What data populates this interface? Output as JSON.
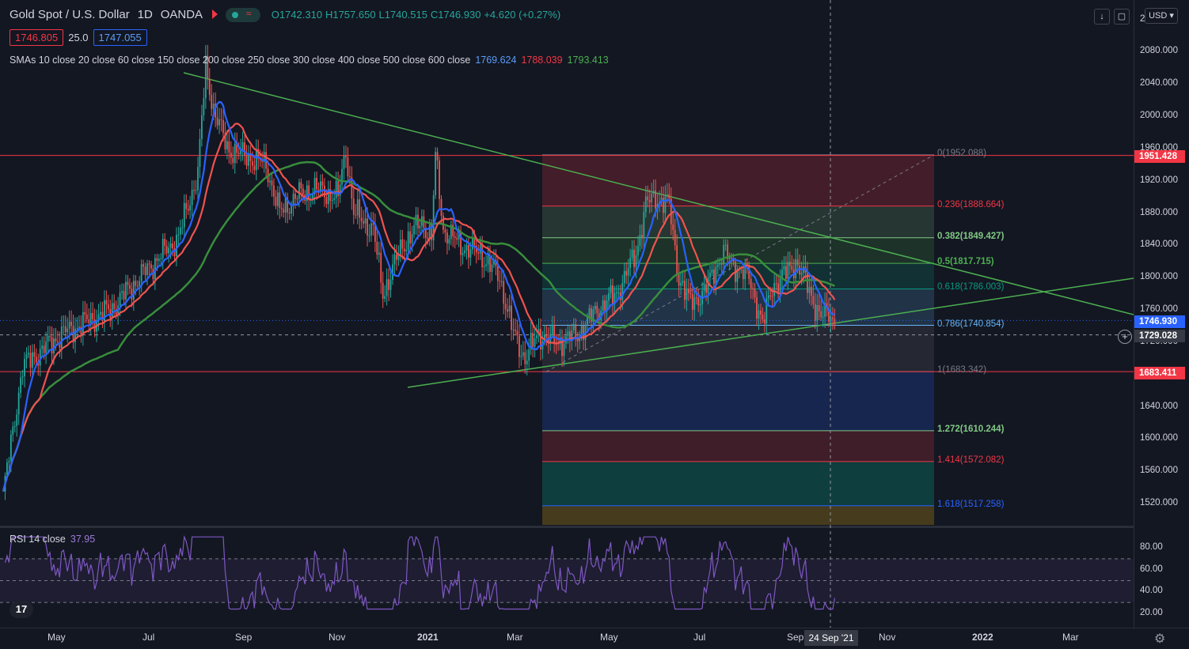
{
  "header": {
    "symbol": "Gold Spot / U.S. Dollar",
    "interval": "1D",
    "exchange": "OANDA",
    "toggle_icon": "wave-icon",
    "ohlc": {
      "o": "O1742.310",
      "h": "H1757.650",
      "l": "L1740.515",
      "c": "C1746.930",
      "chg": "+4.620 (+0.27%)"
    },
    "bid": "1746.805",
    "spread": "25.0",
    "ask": "1747.055"
  },
  "sma_legend": {
    "label": "SMAs 10 close 20 close 60 close 150 close 200 close 250 close 300 close 400 close 500 close 600 close",
    "v1": "1769.624",
    "v2": "1788.039",
    "v3": "1793.413"
  },
  "rsi_legend": {
    "label": "RSI 14 close",
    "value": "37.95"
  },
  "price_axis": {
    "currency": "USD",
    "labels": [
      "2080.000",
      "2040.000",
      "2000.000",
      "1960.000",
      "1920.000",
      "1880.000",
      "1840.000",
      "1800.000",
      "1760.000",
      "1720.000",
      "1680.000",
      "1640.000",
      "1600.000",
      "1560.000",
      "1520.000"
    ],
    "top_partial": "2",
    "tags": {
      "resistance": "1951.428",
      "last": "1746.930",
      "crosshair": "1729.028",
      "support": "1683.411"
    },
    "colors": {
      "resistance": "#f23645",
      "last": "#2962ff",
      "crosshair": "#363a45",
      "support": "#f23645"
    }
  },
  "rsi_axis": {
    "labels": [
      "80.00",
      "60.00",
      "40.00",
      "20.00"
    ]
  },
  "fib_levels": [
    {
      "label": "0(1952.088)",
      "color": "#787b86"
    },
    {
      "label": "0.236(1888.664)",
      "color": "#f23645"
    },
    {
      "label": "0.382(1849.427)",
      "color": "#81c784"
    },
    {
      "label": "0.5(1817.715)",
      "color": "#4caf50"
    },
    {
      "label": "0.618(1786.003)",
      "color": "#089981"
    },
    {
      "label": "0.786(1740.854)",
      "color": "#64b5f6"
    },
    {
      "label": "1(1683.342)",
      "color": "#787b86"
    },
    {
      "label": "1.272(1610.244)",
      "color": "#81c784"
    },
    {
      "label": "1.414(1572.082)",
      "color": "#f23645"
    },
    {
      "label": "1.618(1517.258)",
      "color": "#2962ff"
    }
  ],
  "time_axis": {
    "labels": [
      "May",
      "Jul",
      "Sep",
      "Nov",
      "2021",
      "Mar",
      "May",
      "Jul",
      "Sep",
      "Nov",
      "2022",
      "Mar"
    ],
    "crosshair_date": "24 Sep '21"
  },
  "logo_text": "17",
  "icons": {
    "download": "download-icon",
    "fullscreen": "fullscreen-icon",
    "settings": "gear-icon",
    "add": "plus-icon"
  }
}
